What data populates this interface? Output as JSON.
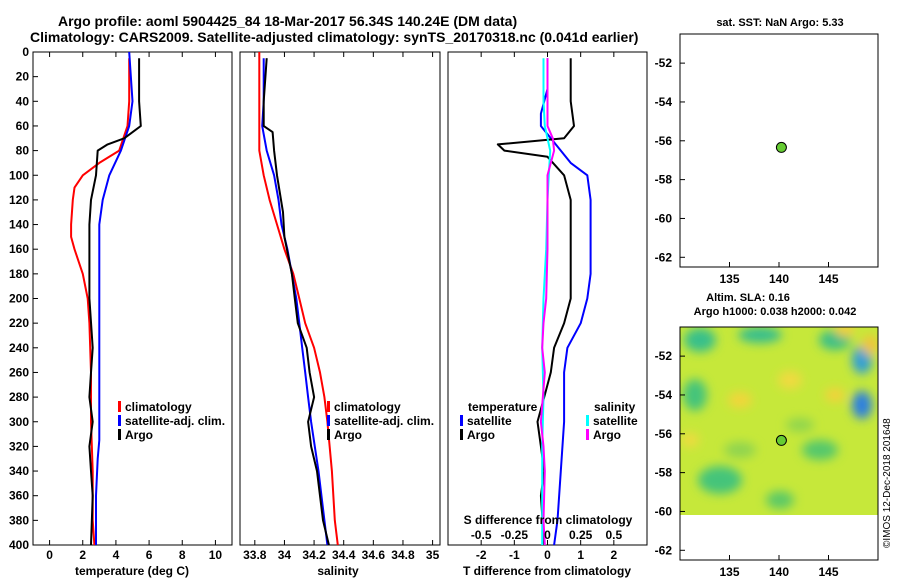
{
  "header": {
    "title_line1": "Argo profile: aoml 5904425_84 18-Mar-2017 56.34S 140.24E (DM data)",
    "title_line2": "Climatology: CARS2009. Satellite-adjusted climatology: synTS_20170318.nc (0.041d earlier)"
  },
  "credit": "©IMOS 12-Dec-2018 201648",
  "colors": {
    "climatology": "#ff0000",
    "satellite": "#0000ff",
    "argo": "#000000",
    "s_satellite": "#00ffff",
    "s_argo": "#ff00ff",
    "marker": "#66cc33"
  },
  "chart_data": [
    {
      "id": "temperature",
      "type": "line",
      "xlabel": "temperature (deg C)",
      "ylabel": "",
      "xlim": [
        -1,
        11
      ],
      "ylim": [
        400,
        0
      ],
      "xticks": [
        "0",
        "2",
        "4",
        "6",
        "8",
        "10"
      ],
      "xtick_values": [
        0,
        2,
        4,
        6,
        8,
        10
      ],
      "yticks": [
        "0",
        "20",
        "40",
        "60",
        "80",
        "100",
        "120",
        "140",
        "160",
        "180",
        "200",
        "220",
        "240",
        "260",
        "280",
        "300",
        "320",
        "340",
        "360",
        "380",
        "400"
      ],
      "ytick_values": [
        0,
        20,
        40,
        60,
        80,
        100,
        120,
        140,
        160,
        180,
        200,
        220,
        240,
        260,
        280,
        300,
        320,
        340,
        360,
        380,
        400
      ],
      "legend": [
        "climatology",
        "satellite-adj. clim.",
        "Argo"
      ],
      "series": [
        {
          "name": "climatology",
          "color": "#ff0000",
          "points": [
            [
              4.8,
              5
            ],
            [
              4.8,
              40
            ],
            [
              4.7,
              60
            ],
            [
              4.2,
              80
            ],
            [
              3.0,
              90
            ],
            [
              2.0,
              100
            ],
            [
              1.5,
              110
            ],
            [
              1.4,
              120
            ],
            [
              1.3,
              140
            ],
            [
              1.3,
              150
            ],
            [
              1.5,
              160
            ],
            [
              2.0,
              180
            ],
            [
              2.3,
              200
            ],
            [
              2.4,
              220
            ],
            [
              2.5,
              260
            ],
            [
              2.5,
              300
            ],
            [
              2.6,
              340
            ],
            [
              2.6,
              380
            ],
            [
              2.7,
              400
            ]
          ]
        },
        {
          "name": "satellite-adj. clim.",
          "color": "#0000ff",
          "points": [
            [
              4.8,
              0
            ],
            [
              5.0,
              40
            ],
            [
              4.8,
              60
            ],
            [
              4.3,
              80
            ],
            [
              3.6,
              100
            ],
            [
              3.2,
              120
            ],
            [
              3.0,
              140
            ],
            [
              3.0,
              200
            ],
            [
              3.0,
              300
            ],
            [
              3.0,
              315
            ],
            [
              2.9,
              330
            ],
            [
              2.8,
              360
            ],
            [
              2.8,
              400
            ]
          ]
        },
        {
          "name": "Argo",
          "color": "#000000",
          "points": [
            [
              5.4,
              5
            ],
            [
              5.4,
              40
            ],
            [
              5.5,
              60
            ],
            [
              4.5,
              70
            ],
            [
              3.5,
              75
            ],
            [
              2.9,
              80
            ],
            [
              2.8,
              100
            ],
            [
              2.5,
              120
            ],
            [
              2.4,
              140
            ],
            [
              2.4,
              200
            ],
            [
              2.6,
              240
            ],
            [
              2.5,
              260
            ],
            [
              2.4,
              280
            ],
            [
              2.6,
              300
            ],
            [
              2.4,
              320
            ],
            [
              2.5,
              340
            ],
            [
              2.6,
              360
            ],
            [
              2.5,
              400
            ]
          ]
        }
      ]
    },
    {
      "id": "salinity",
      "type": "line",
      "xlabel": "salinity",
      "xlim": [
        33.7,
        35.05
      ],
      "ylim": [
        400,
        0
      ],
      "xticks": [
        "33.8",
        "34",
        "34.2",
        "34.4",
        "34.6",
        "34.8",
        "35"
      ],
      "xtick_values": [
        33.8,
        34.0,
        34.2,
        34.4,
        34.6,
        34.8,
        35.0
      ],
      "legend": [
        "climatology",
        "satellite-adj. clim.",
        "Argo"
      ],
      "series": [
        {
          "name": "climatology",
          "color": "#ff0000",
          "points": [
            [
              33.83,
              0
            ],
            [
              33.83,
              40
            ],
            [
              33.83,
              60
            ],
            [
              33.83,
              80
            ],
            [
              33.86,
              100
            ],
            [
              33.9,
              120
            ],
            [
              33.95,
              140
            ],
            [
              34.0,
              160
            ],
            [
              34.06,
              180
            ],
            [
              34.1,
              200
            ],
            [
              34.14,
              220
            ],
            [
              34.2,
              240
            ],
            [
              34.24,
              260
            ],
            [
              34.27,
              280
            ],
            [
              34.29,
              300
            ],
            [
              34.32,
              340
            ],
            [
              34.34,
              380
            ],
            [
              34.36,
              400
            ]
          ]
        },
        {
          "name": "satellite-adj. clim.",
          "color": "#0000ff",
          "points": [
            [
              33.86,
              5
            ],
            [
              33.86,
              40
            ],
            [
              33.85,
              60
            ],
            [
              33.88,
              80
            ],
            [
              33.93,
              100
            ],
            [
              33.96,
              120
            ],
            [
              33.98,
              140
            ],
            [
              34.02,
              160
            ],
            [
              34.05,
              180
            ],
            [
              34.08,
              200
            ],
            [
              34.1,
              220
            ],
            [
              34.12,
              240
            ],
            [
              34.14,
              260
            ],
            [
              34.16,
              280
            ],
            [
              34.18,
              300
            ],
            [
              34.23,
              340
            ],
            [
              34.27,
              380
            ],
            [
              34.29,
              400
            ]
          ]
        },
        {
          "name": "Argo",
          "color": "#000000",
          "points": [
            [
              33.88,
              5
            ],
            [
              33.86,
              40
            ],
            [
              33.86,
              60
            ],
            [
              33.92,
              65
            ],
            [
              33.93,
              80
            ],
            [
              33.95,
              100
            ],
            [
              33.99,
              130
            ],
            [
              34.0,
              150
            ],
            [
              34.05,
              180
            ],
            [
              34.07,
              200
            ],
            [
              34.09,
              220
            ],
            [
              34.15,
              240
            ],
            [
              34.17,
              260
            ],
            [
              34.2,
              280
            ],
            [
              34.16,
              300
            ],
            [
              34.18,
              320
            ],
            [
              34.22,
              340
            ],
            [
              34.26,
              380
            ],
            [
              34.3,
              400
            ]
          ]
        }
      ]
    },
    {
      "id": "difference",
      "type": "line",
      "xlabel": "T difference from climatology",
      "xlabel2": "S difference from climatology",
      "xlim": [
        -3,
        3
      ],
      "ylim": [
        400,
        0
      ],
      "xticks": [
        "-2",
        "-1",
        "0",
        "1",
        "2"
      ],
      "xtick_values": [
        -2,
        -1,
        0,
        1,
        2
      ],
      "s_xticks": [
        "-0.5",
        "-0.25",
        "0",
        "0.25",
        "0.5"
      ],
      "legend_temperature_title": "temperature",
      "legend_salinity_title": "salinity",
      "legend_temperature": [
        "satellite",
        "Argo"
      ],
      "legend_salinity": [
        "satellite",
        "Argo"
      ],
      "series": [
        {
          "name": "T satellite",
          "color": "#0000ff",
          "points": [
            [
              0,
              5
            ],
            [
              0,
              30
            ],
            [
              -0.2,
              50
            ],
            [
              -0.2,
              60
            ],
            [
              0.1,
              70
            ],
            [
              0.7,
              90
            ],
            [
              1.2,
              100
            ],
            [
              1.3,
              120
            ],
            [
              1.3,
              140
            ],
            [
              1.3,
              180
            ],
            [
              1.2,
              200
            ],
            [
              1.0,
              220
            ],
            [
              0.6,
              240
            ],
            [
              0.5,
              260
            ],
            [
              0.5,
              300
            ],
            [
              0.4,
              340
            ],
            [
              0.3,
              380
            ],
            [
              0.2,
              400
            ]
          ]
        },
        {
          "name": "T Argo",
          "color": "#000000",
          "points": [
            [
              0.7,
              5
            ],
            [
              0.7,
              40
            ],
            [
              0.8,
              60
            ],
            [
              0.5,
              70
            ],
            [
              -1.5,
              75
            ],
            [
              -1.3,
              80
            ],
            [
              0,
              85
            ],
            [
              0.5,
              100
            ],
            [
              0.7,
              120
            ],
            [
              0.7,
              160
            ],
            [
              0.7,
              200
            ],
            [
              0.5,
              220
            ],
            [
              0.2,
              240
            ],
            [
              0.1,
              260
            ],
            [
              -0.1,
              280
            ],
            [
              -0.3,
              300
            ],
            [
              -0.2,
              320
            ],
            [
              -0.1,
              340
            ],
            [
              -0.2,
              360
            ],
            [
              -0.1,
              400
            ]
          ]
        },
        {
          "name": "S satellite",
          "color": "#00ffff",
          "points": [
            [
              -0.03,
              5
            ],
            [
              -0.03,
              40
            ],
            [
              -0.02,
              60
            ],
            [
              0.02,
              80
            ],
            [
              0.01,
              100
            ],
            [
              0.0,
              120
            ],
            [
              -0.01,
              160
            ],
            [
              -0.03,
              200
            ],
            [
              -0.04,
              240
            ],
            [
              -0.03,
              280
            ],
            [
              -0.04,
              320
            ],
            [
              -0.04,
              360
            ],
            [
              -0.04,
              400
            ]
          ]
        },
        {
          "name": "S Argo",
          "color": "#ff00ff",
          "points": [
            [
              0.0,
              5
            ],
            [
              0.0,
              60
            ],
            [
              0.04,
              70
            ],
            [
              0.05,
              80
            ],
            [
              0.0,
              100
            ],
            [
              0.0,
              160
            ],
            [
              -0.01,
              200
            ],
            [
              -0.03,
              220
            ],
            [
              -0.04,
              240
            ],
            [
              -0.02,
              260
            ],
            [
              -0.05,
              300
            ],
            [
              -0.03,
              320
            ],
            [
              -0.02,
              340
            ],
            [
              -0.03,
              380
            ],
            [
              -0.02,
              400
            ]
          ]
        }
      ]
    },
    {
      "id": "sst_map",
      "type": "scatter",
      "title": "sat. SST: NaN Argo: 5.33",
      "xlim": [
        130,
        150
      ],
      "ylim": [
        -62.5,
        -50.5
      ],
      "xticks": [
        "135",
        "140",
        "145"
      ],
      "xtick_values": [
        135,
        140,
        145
      ],
      "yticks": [
        "-52",
        "-54",
        "-56",
        "-58",
        "-60",
        "-62"
      ],
      "ytick_values": [
        -52,
        -54,
        -56,
        -58,
        -60,
        -62
      ],
      "points": [
        {
          "lon": 140.24,
          "lat": -56.34
        }
      ]
    },
    {
      "id": "sla_map",
      "type": "heatmap",
      "title_line1": "Altim. SLA: 0.16",
      "title_line2": "Argo h1000: 0.038 h2000: 0.042",
      "xlim": [
        130,
        150
      ],
      "ylim": [
        -62.5,
        -50.5
      ],
      "xticks": [
        "135",
        "140",
        "145"
      ],
      "xtick_values": [
        135,
        140,
        145
      ],
      "yticks": [
        "-52",
        "-54",
        "-56",
        "-58",
        "-60",
        "-62"
      ],
      "ytick_values": [
        -52,
        -54,
        -56,
        -58,
        -60,
        -62
      ],
      "data_lat_range": [
        -60,
        -50.5
      ],
      "points": [
        {
          "lon": 140.24,
          "lat": -56.34
        }
      ]
    }
  ]
}
